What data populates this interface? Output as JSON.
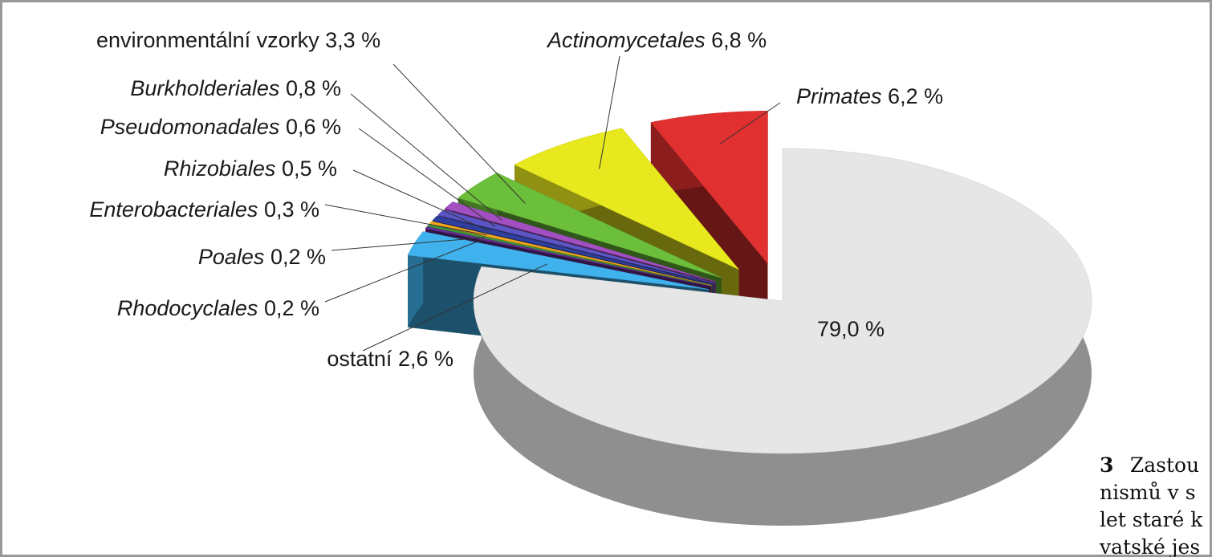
{
  "chart_data": {
    "type": "pie",
    "categories": [
      null,
      "ostatní",
      "Rhodocyclales",
      "Poales",
      "Enterobacteriales",
      "Rhizobiales",
      "Pseudomonadales",
      "Burkholderiales",
      "environmentální vzorky",
      "Actinomycetales",
      "Primates"
    ],
    "values": [
      79.0,
      2.6,
      0.2,
      0.2,
      0.3,
      0.5,
      0.6,
      0.8,
      3.3,
      6.8,
      6.2
    ],
    "value_labels": [
      "79,0 %",
      "2,6 %",
      "0,2 %",
      "0,2 %",
      "0,3 %",
      "0,5 %",
      "0,6 %",
      "0,8 %",
      "3,3 %",
      "6,8 %",
      "6,2 %"
    ],
    "colors": [
      "#e6e6e6",
      "#3fb2ee",
      "#6a2f97",
      "#3c9a3c",
      "#f2a81d",
      "#2f3f9e",
      "#5a56c6",
      "#a24fc2",
      "#6cbf3a",
      "#e8e81e",
      "#e0302f"
    ],
    "exploded": [
      false,
      true,
      true,
      true,
      true,
      true,
      true,
      true,
      true,
      true,
      true
    ],
    "start_angle": 0,
    "direction": "clockwise"
  },
  "caption": {
    "number": "3",
    "lines": [
      "Zastou",
      "nismů v s",
      "let staré k",
      "vatské jes"
    ]
  }
}
